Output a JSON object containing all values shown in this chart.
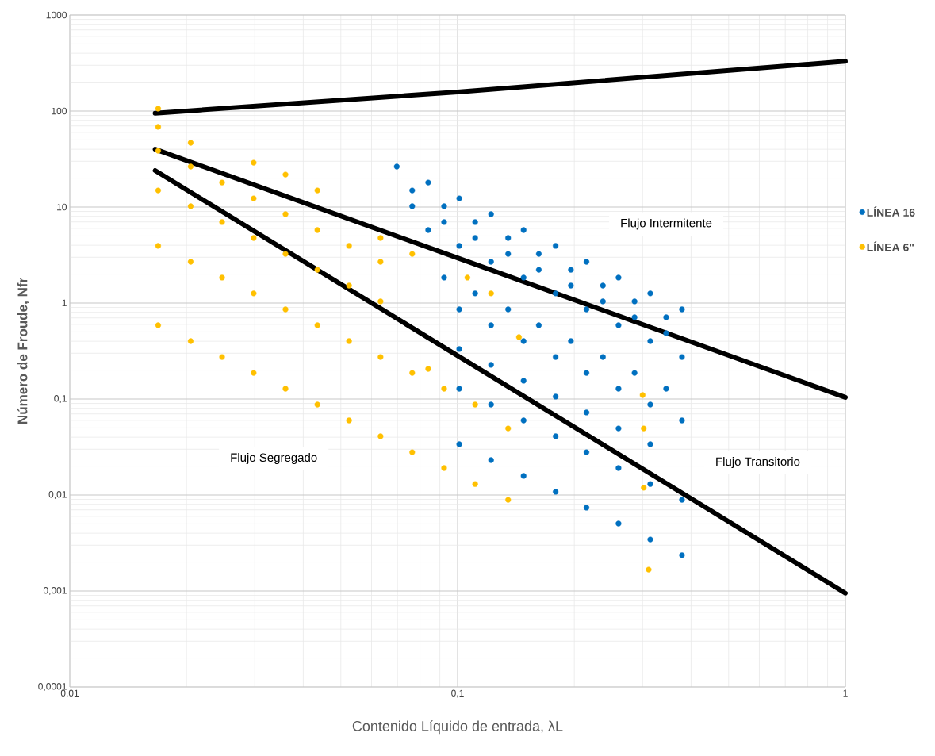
{
  "chart_data": {
    "type": "scatter",
    "xlabel": "Contenido Líquido de entrada, λL",
    "ylabel": "Número de Froude,  Nfr",
    "log": "xy",
    "grid": true,
    "legend": "right",
    "marker": "circle",
    "xlim": [
      0.01,
      1
    ],
    "ylim": [
      0.0001,
      1000
    ],
    "xticks": [
      {
        "value": 0.01,
        "label": "0,01"
      },
      {
        "value": 0.1,
        "label": "0,1"
      },
      1
    ],
    "yticks": [
      {
        "value": 0.0001,
        "label": "0,0001"
      },
      {
        "value": 0.001,
        "label": "0,001"
      },
      {
        "value": 0.01,
        "label": "0,01"
      },
      {
        "value": 0.1,
        "label": "0,1"
      },
      1,
      10,
      100,
      1000
    ],
    "annotations": [
      "Flujo Intermitente",
      "Flujo Transitorio",
      "Flujo Segregado"
    ],
    "series": [
      {
        "type": "line",
        "color": "#000000",
        "marker": "none",
        "line_style": "solid",
        "x": [
          0.0166,
          0.1,
          1
        ],
        "values": [
          95,
          158,
          330
        ]
      },
      {
        "type": "line",
        "color": "#000000",
        "marker": "none",
        "line_style": "solid",
        "x": [
          0.0166,
          0.1,
          1
        ],
        "values": [
          40,
          2.95,
          0.104
        ]
      },
      {
        "type": "line",
        "color": "#000000",
        "marker": "none",
        "line_style": "solid",
        "x": [
          0.0166,
          0.1,
          1
        ],
        "values": [
          24,
          0.283,
          0.00095
        ]
      },
      {
        "name": "LÍNEA 16",
        "color": "#0070c0",
        "x": [
          0.0697,
          0.084,
          0.101,
          0.122,
          0.148,
          0.179,
          0.215,
          0.26,
          0.314,
          0.379,
          0.0764,
          0.0923,
          0.111,
          0.135,
          0.162,
          0.196,
          0.237,
          0.286,
          0.345,
          0.0764,
          0.0923,
          0.111,
          0.135,
          0.162,
          0.196,
          0.237,
          0.286,
          0.345,
          0.084,
          0.101,
          0.122,
          0.148,
          0.179,
          0.215,
          0.26,
          0.314,
          0.379,
          0.0923,
          0.111,
          0.135,
          0.162,
          0.196,
          0.237,
          0.286,
          0.345,
          0.101,
          0.122,
          0.148,
          0.179,
          0.215,
          0.26,
          0.314,
          0.379,
          0.101,
          0.122,
          0.148,
          0.179,
          0.215,
          0.26,
          0.314,
          0.101,
          0.122,
          0.148,
          0.179,
          0.215,
          0.26,
          0.314,
          0.379,
          0.101,
          0.122,
          0.148,
          0.179,
          0.215,
          0.26,
          0.314,
          0.379
        ],
        "values": [
          26.4,
          18.0,
          12.3,
          8.43,
          5.76,
          3.94,
          2.69,
          1.84,
          1.26,
          0.859,
          14.9,
          10.2,
          6.97,
          4.76,
          3.25,
          2.22,
          1.52,
          1.04,
          0.71,
          10.2,
          6.97,
          4.76,
          3.25,
          2.22,
          1.52,
          1.04,
          0.71,
          0.485,
          5.76,
          3.94,
          2.69,
          1.84,
          1.26,
          0.859,
          0.587,
          0.401,
          0.274,
          1.84,
          1.26,
          0.859,
          0.587,
          0.401,
          0.274,
          0.187,
          0.128,
          0.859,
          0.587,
          0.401,
          0.274,
          0.187,
          0.128,
          0.0875,
          0.0598,
          0.332,
          0.227,
          0.155,
          0.106,
          0.0724,
          0.0494,
          0.0338,
          0.128,
          0.0875,
          0.0598,
          0.0409,
          0.0279,
          0.0191,
          0.013,
          0.00891,
          0.0338,
          0.0231,
          0.0158,
          0.0108,
          0.00738,
          0.00504,
          0.00344,
          0.00236
        ]
      },
      {
        "name": "LÍNEA 6\"",
        "color": "#ffc000",
        "x": [
          0.0169,
          0.0205,
          0.0247,
          0.0298,
          0.036,
          0.0435,
          0.0525,
          0.0633,
          0.0764,
          0.0923,
          0.111,
          0.135,
          0.0169,
          0.0205,
          0.0247,
          0.0298,
          0.036,
          0.0435,
          0.0525,
          0.0633,
          0.0764,
          0.0923,
          0.111,
          0.0169,
          0.0205,
          0.0247,
          0.0298,
          0.036,
          0.0435,
          0.0525,
          0.0633,
          0.0169,
          0.0205,
          0.0247,
          0.0298,
          0.036,
          0.0435,
          0.0525,
          0.0633,
          0.0169,
          0.0169,
          0.0205,
          0.0298,
          0.036,
          0.0435,
          0.0633,
          0.0764,
          0.3,
          0.302,
          0.302,
          0.311,
          0.144,
          0.122,
          0.106,
          0.135,
          0.084
        ],
        "values": [
          0.587,
          0.401,
          0.274,
          0.187,
          0.128,
          0.0875,
          0.0598,
          0.0409,
          0.0279,
          0.0191,
          0.013,
          0.00891,
          3.94,
          2.69,
          1.84,
          1.26,
          0.859,
          0.587,
          0.401,
          0.274,
          0.187,
          0.128,
          0.0875,
          14.9,
          10.2,
          6.97,
          4.76,
          3.25,
          2.22,
          1.52,
          1.04,
          38.6,
          26.4,
          18.0,
          12.3,
          8.43,
          5.76,
          3.94,
          2.69,
          106,
          68.4,
          46.7,
          29.0,
          21.8,
          14.9,
          4.76,
          3.25,
          0.11,
          0.0494,
          0.0119,
          0.00167,
          0.441,
          1.26,
          1.84,
          0.0494,
          0.206
        ]
      }
    ]
  }
}
